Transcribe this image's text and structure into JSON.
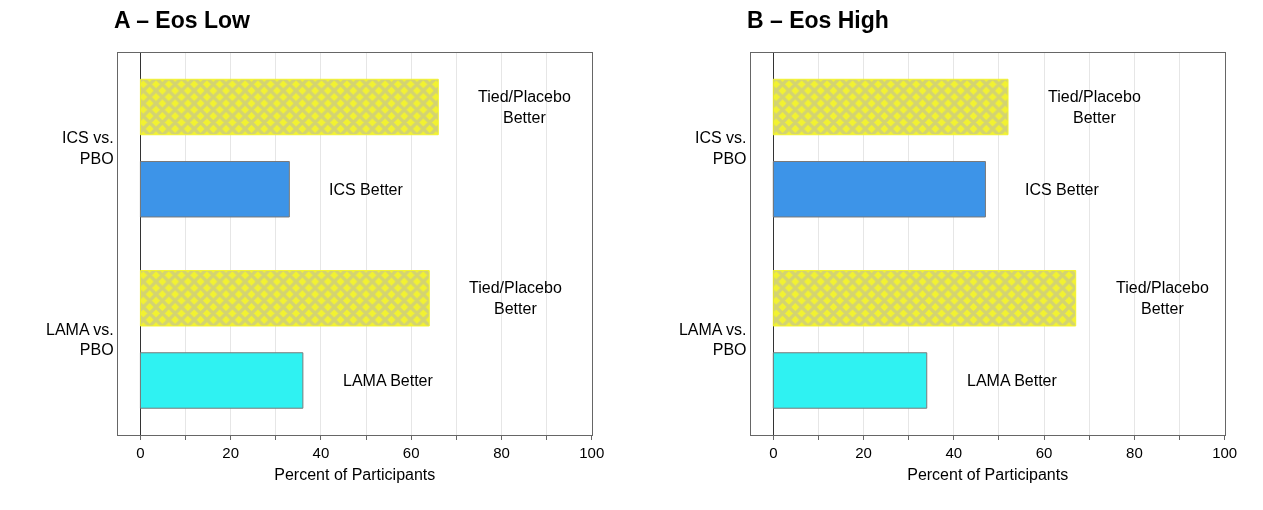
{
  "chart_data": [
    {
      "type": "bar",
      "orientation": "horizontal",
      "title": "A – Eos Low",
      "xlabel": "Percent of Participants",
      "categories": [
        "ICS vs. PBO",
        "LAMA vs. PBO"
      ],
      "xlim": [
        -5,
        100
      ],
      "xticks": [
        0,
        {
          "value": 10,
          "label": null
        },
        20,
        {
          "value": 30,
          "label": null
        },
        40,
        {
          "value": 50,
          "label": null
        },
        60,
        {
          "value": 70,
          "label": null
        },
        80,
        {
          "value": 90,
          "label": null
        },
        100
      ],
      "grid": "x",
      "legend": false,
      "series": [
        {
          "name": "Tied/Placebo Better",
          "color": "#f2f230",
          "values": [
            66,
            64
          ]
        },
        {
          "name": "ICS Better",
          "color": "#3d94e8",
          "values": [
            33,
            null
          ]
        },
        {
          "name": "LAMA Better",
          "color": "#2ff2f2",
          "values": [
            null,
            36
          ]
        }
      ]
    },
    {
      "type": "bar",
      "orientation": "horizontal",
      "title": "B – Eos High",
      "xlabel": "Percent of Participants",
      "categories": [
        "ICS vs. PBO",
        "LAMA vs. PBO"
      ],
      "xlim": [
        -5,
        100
      ],
      "xticks": [
        0,
        {
          "value": 10,
          "label": null
        },
        20,
        {
          "value": 30,
          "label": null
        },
        40,
        {
          "value": 50,
          "label": null
        },
        60,
        {
          "value": 70,
          "label": null
        },
        80,
        {
          "value": 90,
          "label": null
        },
        100
      ],
      "grid": "x",
      "legend": false,
      "series": [
        {
          "name": "Tied/Placebo Better",
          "color": "#f2f230",
          "values": [
            52,
            67
          ]
        },
        {
          "name": "ICS Better",
          "color": "#3d94e8",
          "values": [
            47,
            null
          ]
        },
        {
          "name": "LAMA Better",
          "color": "#2ff2f2",
          "values": [
            null,
            34
          ]
        }
      ]
    }
  ]
}
